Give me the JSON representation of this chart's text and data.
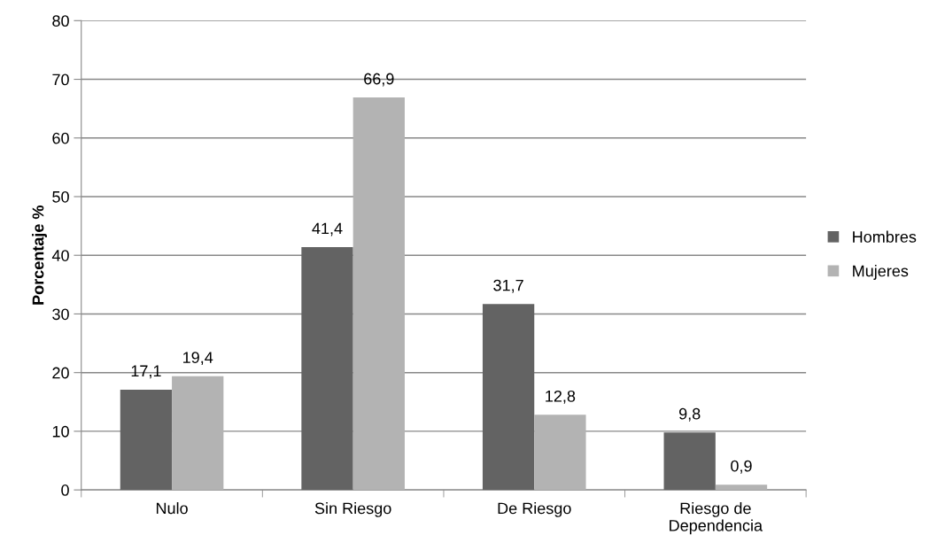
{
  "chart_data": {
    "type": "bar",
    "ylabel": "Porcentaje %",
    "categories": [
      "Nulo",
      "Sin Riesgo",
      "De Riesgo",
      "Riesgo de Dependencia"
    ],
    "series": [
      {
        "name": "Hombres",
        "color": "#636363",
        "values": [
          17.1,
          41.4,
          31.7,
          9.8
        ],
        "value_labels": [
          "17,1",
          "41,4",
          "31,7",
          "9,8"
        ]
      },
      {
        "name": "Mujeres",
        "color": "#b3b3b3",
        "values": [
          19.4,
          66.9,
          12.8,
          0.9
        ],
        "value_labels": [
          "19,4",
          "66,9",
          "12,8",
          "0,9"
        ]
      }
    ],
    "ylim": [
      0,
      80
    ],
    "yticks": [
      0,
      10,
      20,
      30,
      40,
      50,
      60,
      70,
      80
    ],
    "grid": "y",
    "legend": "right"
  }
}
